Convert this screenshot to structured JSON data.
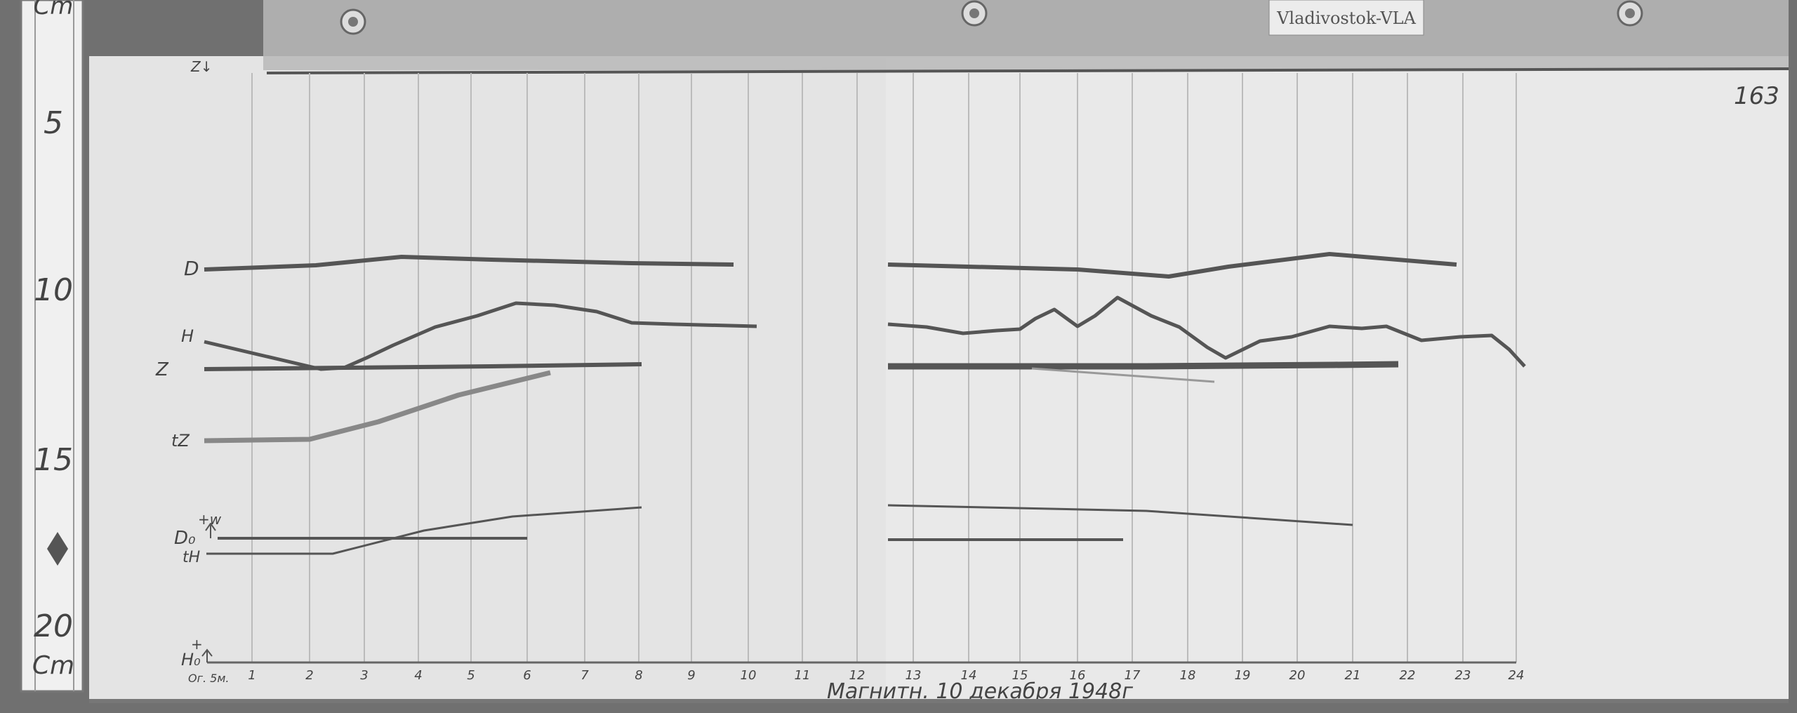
{
  "station_label": "Vladivostok-VLA",
  "sheet_number": "163",
  "ruler": {
    "unit_top": "Cm",
    "marks": [
      "5",
      "10",
      "15",
      "20"
    ],
    "unit_bottom": "Cm"
  },
  "trace_labels": {
    "z_arrow": "Z↓",
    "d": "D",
    "h": "H",
    "z": "Z",
    "tz": "tZ",
    "w": "+w",
    "d0": "D₀",
    "th": "tH",
    "plus": "+",
    "h0": "H₀",
    "start_note": "Ог. 5м."
  },
  "hour_ticks": [
    "1",
    "2",
    "3",
    "4",
    "5",
    "6",
    "7",
    "8",
    "9",
    "10",
    "11",
    "12",
    "13",
    "14",
    "15",
    "16",
    "17",
    "18",
    "19",
    "20",
    "21",
    "22",
    "23",
    "24"
  ],
  "caption": "Магнитн. 10 декабря 1948г",
  "colors": {
    "paper": "#e6e6e6",
    "trace": "#555555",
    "background": "#6a6a6a"
  }
}
